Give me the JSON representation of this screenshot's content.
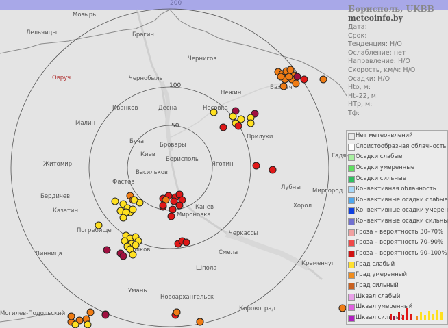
{
  "radar": {
    "title": "Борисполь, UKBB",
    "site": "meteoinfo.by",
    "fields": [
      "Дата:",
      "Срок:",
      "Тенденция: Н/О",
      "Ослабление: нет",
      "Направление: Н/О",
      "Скорость, км/ч: Н/О",
      "Осадки: Н/О",
      "Hto, м:",
      "Ht–22, м:",
      "НТр, м:",
      "Тф:"
    ]
  },
  "ring_labels": [
    "50",
    "100",
    "200"
  ],
  "cities": [
    {
      "name": "Мозырь",
      "type": "gray"
    },
    {
      "name": "Лельчицы",
      "type": "gray"
    },
    {
      "name": "Брагин",
      "type": "gray"
    },
    {
      "name": "Овруч",
      "type": "red"
    },
    {
      "name": "Чернобыль",
      "type": "gray"
    },
    {
      "name": "Чернигов",
      "type": "gray"
    },
    {
      "name": "Нежин",
      "type": "gray"
    },
    {
      "name": "Бахмач",
      "type": "gray"
    },
    {
      "name": "Иванков",
      "type": "gray"
    },
    {
      "name": "Десна",
      "type": "gray"
    },
    {
      "name": "Носовка",
      "type": "gray"
    },
    {
      "name": "Малин",
      "type": "gray"
    },
    {
      "name": "Прилуки",
      "type": "gray"
    },
    {
      "name": "Буча",
      "type": "gray"
    },
    {
      "name": "Бровары",
      "type": "gray"
    },
    {
      "name": "Киев",
      "type": "gray"
    },
    {
      "name": "Борисполь",
      "type": "gray"
    },
    {
      "name": "Житомир",
      "type": "gray"
    },
    {
      "name": "Васильков",
      "type": "gray"
    },
    {
      "name": "Яготин",
      "type": "gray"
    },
    {
      "name": "Гадяч",
      "type": "gray"
    },
    {
      "name": "Фастов",
      "type": "gray"
    },
    {
      "name": "Лубны",
      "type": "gray"
    },
    {
      "name": "Миргород",
      "type": "gray"
    },
    {
      "name": "Бердичев",
      "type": "gray"
    },
    {
      "name": "Хорол",
      "type": "gray"
    },
    {
      "name": "Казатин",
      "type": "gray"
    },
    {
      "name": "Канев",
      "type": "gray"
    },
    {
      "name": "Мироновка",
      "type": "gray"
    },
    {
      "name": "Погребище",
      "type": "gray"
    },
    {
      "name": "Черкассы",
      "type": "gray"
    },
    {
      "name": "Кашков",
      "type": "gray"
    },
    {
      "name": "Смела",
      "type": "gray"
    },
    {
      "name": "Винница",
      "type": "gray"
    },
    {
      "name": "Кременчуг",
      "type": "gray"
    },
    {
      "name": "Шпола",
      "type": "gray"
    },
    {
      "name": "Умань",
      "type": "gray"
    },
    {
      "name": "Новоархангельск",
      "type": "gray"
    },
    {
      "name": "Кировоград",
      "type": "gray"
    },
    {
      "name": "Могилев-Подольский",
      "type": "gray"
    }
  ],
  "cells": [
    {
      "c": "orange"
    },
    {
      "c": "orange"
    },
    {
      "c": "orange"
    },
    {
      "c": "orange"
    },
    {
      "c": "orange"
    },
    {
      "c": "orange"
    },
    {
      "c": "orange"
    },
    {
      "c": "red"
    },
    {
      "c": "orange"
    },
    {
      "c": "darkred"
    },
    {
      "c": "orange"
    },
    {
      "c": "orange"
    },
    {
      "c": "orange"
    },
    {
      "c": "orange"
    },
    {
      "c": "yellow"
    },
    {
      "c": "darkred"
    },
    {
      "c": "yellow"
    },
    {
      "c": "yellow"
    },
    {
      "c": "yellow"
    },
    {
      "c": "darkred"
    },
    {
      "c": "yellow"
    },
    {
      "c": "red"
    },
    {
      "c": "yellow"
    },
    {
      "c": "red"
    },
    {
      "c": "red"
    },
    {
      "c": "red"
    },
    {
      "c": "red"
    },
    {
      "c": "red"
    },
    {
      "c": "red"
    },
    {
      "c": "red"
    },
    {
      "c": "red"
    },
    {
      "c": "red"
    },
    {
      "c": "red"
    },
    {
      "c": "red"
    },
    {
      "c": "orange"
    },
    {
      "c": "red"
    },
    {
      "c": "red"
    },
    {
      "c": "red"
    },
    {
      "c": "red"
    },
    {
      "c": "red"
    },
    {
      "c": "red"
    },
    {
      "c": "orange"
    },
    {
      "c": "orange"
    },
    {
      "c": "yellow"
    },
    {
      "c": "yellow"
    },
    {
      "c": "yellow"
    },
    {
      "c": "yellow"
    },
    {
      "c": "yellow"
    },
    {
      "c": "yellow"
    },
    {
      "c": "yellow"
    },
    {
      "c": "yellow"
    },
    {
      "c": "yellow"
    },
    {
      "c": "yellow"
    },
    {
      "c": "yellow"
    },
    {
      "c": "yellow"
    },
    {
      "c": "yellow"
    },
    {
      "c": "yellow"
    },
    {
      "c": "yellow"
    },
    {
      "c": "yellow"
    },
    {
      "c": "yellow"
    },
    {
      "c": "yellow"
    },
    {
      "c": "yellow"
    },
    {
      "c": "yellow"
    },
    {
      "c": "yellow"
    },
    {
      "c": "darkred"
    },
    {
      "c": "darkred"
    },
    {
      "c": "darkred"
    },
    {
      "c": "red"
    },
    {
      "c": "red"
    },
    {
      "c": "red"
    },
    {
      "c": "red"
    },
    {
      "c": "orange"
    },
    {
      "c": "orange"
    },
    {
      "c": "orange"
    },
    {
      "c": "orange"
    },
    {
      "c": "orange"
    },
    {
      "c": "yellow"
    },
    {
      "c": "yellow"
    },
    {
      "c": "darkred"
    },
    {
      "c": "orange"
    },
    {
      "c": "orange"
    },
    {
      "c": "orange"
    }
  ],
  "legend": [
    {
      "label": "Нет метеоявлений",
      "color": "#e8e8e8"
    },
    {
      "label": "Слоистообразная облачность",
      "color": "#ffffff"
    },
    {
      "label": "Осадки слабые",
      "color": "#a8f0a0"
    },
    {
      "label": "Осадки умеренные",
      "color": "#5ee060"
    },
    {
      "label": "Осадки сильные",
      "color": "#30c060"
    },
    {
      "label": "Конвективная облачность",
      "color": "#a8d8f8"
    },
    {
      "label": "Конвективные осадки слабые",
      "color": "#50a8ee"
    },
    {
      "label": "Конвективные осадки умерен.",
      "color": "#1040e0"
    },
    {
      "label": "Конвективные осадки сильные",
      "color": "#7070d0"
    },
    {
      "label": "Гроза – вероятность 30–70%",
      "color": "#f0a0a0"
    },
    {
      "label": "Гроза – вероятность 70–90%",
      "color": "#f04848"
    },
    {
      "label": "Гроза – вероятность 90–100%",
      "color": "#d01010"
    },
    {
      "label": "Град слабый",
      "color": "#ffe030"
    },
    {
      "label": "Град умеренный",
      "color": "#f08c1c"
    },
    {
      "label": "Град сильный",
      "color": "#c86020"
    },
    {
      "label": "Шквал слабый",
      "color": "#e8a0e8"
    },
    {
      "label": "Шквал умеренный",
      "color": "#e060e0"
    },
    {
      "label": "Шквал сильный",
      "color": "#b020c0"
    }
  ],
  "colors": {
    "orange": "#f07c14",
    "red": "#e01818",
    "darkred": "#a01040",
    "yellow": "#ffe020",
    "purple": "#c030c0"
  }
}
